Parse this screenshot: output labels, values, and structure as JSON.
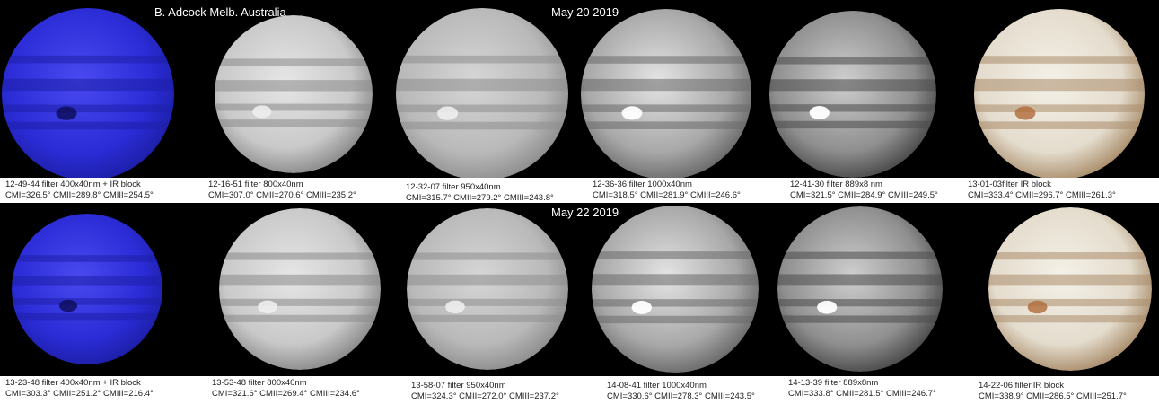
{
  "header": {
    "author": "B. Adcock Melb. Australia"
  },
  "rows": [
    {
      "date": "May 20 2019",
      "panels": [
        {
          "line1": "12-49-44  filter 400x40nm    + IR block",
          "line2": "CMI=326.5° CMII=289.8° CMIII=254.5°",
          "tone": "blue"
        },
        {
          "line1": "12-16-51  filter 800x40nm",
          "line2": "CMI=307.0° CMII=270.6° CMIII=235.2°",
          "tone": "gray-sharp"
        },
        {
          "line1": "12-32-07  filter 950x40nm",
          "line2": "CMI=315.7° CMII=279.2° CMIII=243.8°",
          "tone": "gray-soft"
        },
        {
          "line1": "12-36-36  filter 1000x40nm",
          "line2": "CMI=318.5° CMII=281.9° CMIII=246.6°",
          "tone": "gray-bright-spot"
        },
        {
          "line1": "12-41-30  filter 889x8 nm",
          "line2": "CMI=321.5° CMII=284.9° CMIII=249.5°",
          "tone": "gray-dark-band"
        },
        {
          "line1": "13-01-03filter IR block",
          "line2": "CMI=333.4° CMII=296.7° CMIII=261.3°",
          "tone": "color"
        }
      ]
    },
    {
      "date": "May 22  2019",
      "panels": [
        {
          "line1": "13-23-48  filter 400x40nm    + IR block",
          "line2": "CMI=303.3° CMII=251.2° CMIII=216.4°",
          "tone": "blue"
        },
        {
          "line1": "13-53-48  filter 800x40nm",
          "line2": "CMI=321.6° CMII=269.4° CMIII=234.6°",
          "tone": "gray-sharp"
        },
        {
          "line1": "13-58-07  filter 950x40nm",
          "line2": "CMI=324.3° CMII=272.0° CMIII=237.2°",
          "tone": "gray-soft"
        },
        {
          "line1": "14-08-41  filter 1000x40nm",
          "line2": "CMI=330.6° CMII=278.3° CMIII=243.5°",
          "tone": "gray-bright-spot"
        },
        {
          "line1": "14-13-39  filter 889x8nm",
          "line2": "CMI=333.8° CMII=281.5° CMIII=246.7°",
          "tone": "gray-dark-band"
        },
        {
          "line1": "14-22-06  filter,IR block",
          "line2": "CMI=338.9° CMII=286.5° CMIII=251.7°",
          "tone": "color"
        }
      ]
    }
  ],
  "colors": {
    "background": "#000000",
    "caption_text": "#222222",
    "title_text": "#ffffff",
    "blue_planet": "#2a2bd8",
    "gray_planet": "#b8b8b8",
    "color_planet": "#e6dfd0",
    "great_red_spot": "#b06a3a"
  }
}
